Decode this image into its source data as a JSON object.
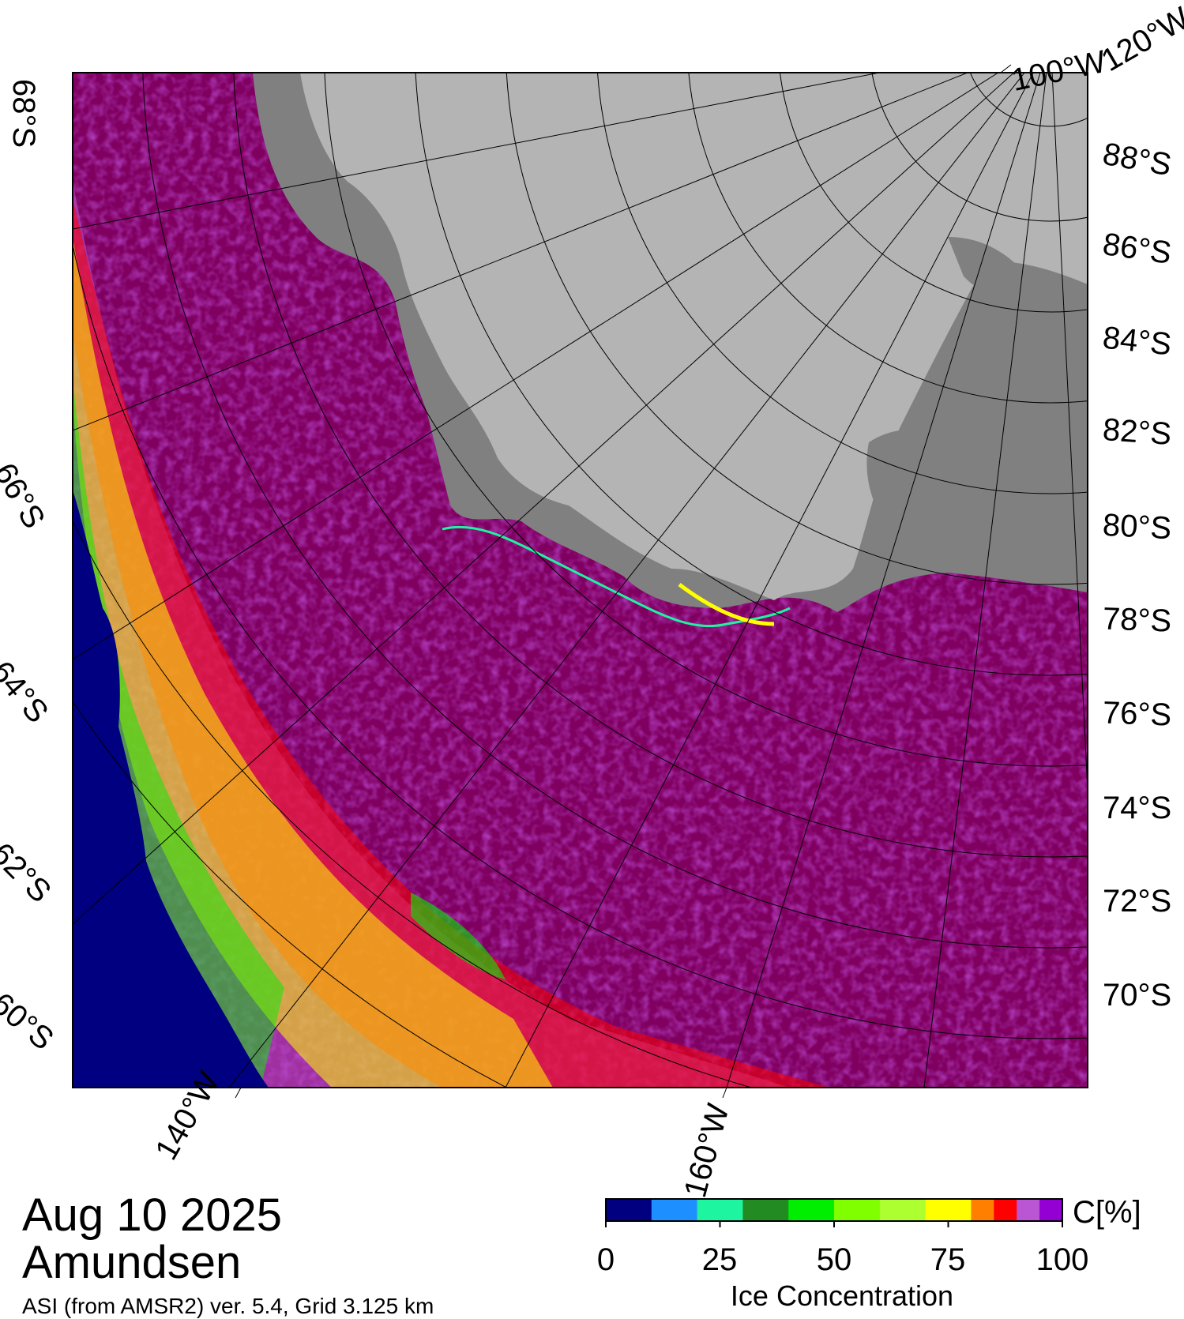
{
  "date": "Aug 10 2025",
  "region": "Amundsen",
  "source": "ASI (from AMSR2) ver. 5.4,  Grid 3.125 km",
  "lat_labels_right": [
    "88°S",
    "86°S",
    "84°S",
    "82°S",
    "80°S",
    "78°S",
    "76°S",
    "74°S",
    "72°S",
    "70°S"
  ],
  "lat_labels_left": [
    "68°S",
    "66°S",
    "64°S",
    "62°S",
    "60°S"
  ],
  "lon_labels": [
    "140°W",
    "160°W",
    "100°W",
    "120°W"
  ],
  "colorbar": {
    "title": "Ice Concentration",
    "unit": "C[%]",
    "ticks": [
      "0",
      "25",
      "50",
      "75",
      "100"
    ],
    "colors": [
      "#000080",
      "#1e8fff",
      "#1ef5a0",
      "#228b22",
      "#00ee00",
      "#7fff00",
      "#adff2f",
      "#ffff00",
      "#ff8000",
      "#ff0000",
      "#ba55d3",
      "#9400d3"
    ]
  },
  "colors": {
    "ocean": "#000080",
    "land": "#b4b4b4",
    "ice_shelf": "#808080",
    "high_ice": "#800060"
  }
}
